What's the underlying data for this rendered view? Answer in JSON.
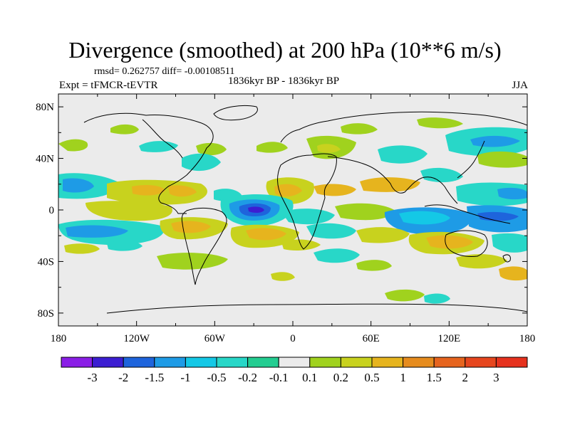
{
  "title": "Divergence (smoothed) at 200 hPa (10**6 m/s)",
  "stats": "rmsd= 0.262757 diff= -0.00108511",
  "experiment": "Expt = tFMCR-tEVTR",
  "period": "1836kyr BP - 1836kyr BP",
  "season": "JJA",
  "map": {
    "lon_range": [
      -180,
      180
    ],
    "lat_range": [
      -90,
      90
    ],
    "x_ticks": [
      {
        "lon": -180,
        "label": "180"
      },
      {
        "lon": -120,
        "label": "120W"
      },
      {
        "lon": -60,
        "label": "60W"
      },
      {
        "lon": 0,
        "label": "0"
      },
      {
        "lon": 60,
        "label": "60E"
      },
      {
        "lon": 120,
        "label": "120E"
      },
      {
        "lon": 180,
        "label": "180"
      }
    ],
    "y_ticks": [
      {
        "lat": 80,
        "label": "80N"
      },
      {
        "lat": 40,
        "label": "40N"
      },
      {
        "lat": 0,
        "label": "0"
      },
      {
        "lat": -40,
        "label": "40S"
      },
      {
        "lat": -80,
        "label": "80S"
      }
    ]
  },
  "colorbar": {
    "colors": [
      "#8a1ee6",
      "#3c1ed2",
      "#1e64dc",
      "#1e9be6",
      "#14c8e6",
      "#28d7c8",
      "#23cd91",
      "#ebebeb",
      "#a0d21e",
      "#c8d21e",
      "#e6b41e",
      "#e68c1e",
      "#e6641e",
      "#e6461e",
      "#e6321e"
    ],
    "labels": [
      "-3",
      "-2",
      "-1.5",
      "-1",
      "-0.5",
      "-0.2",
      "-0.1",
      "0.1",
      "0.2",
      "0.5",
      "1",
      "1.5",
      "2",
      "3"
    ]
  }
}
